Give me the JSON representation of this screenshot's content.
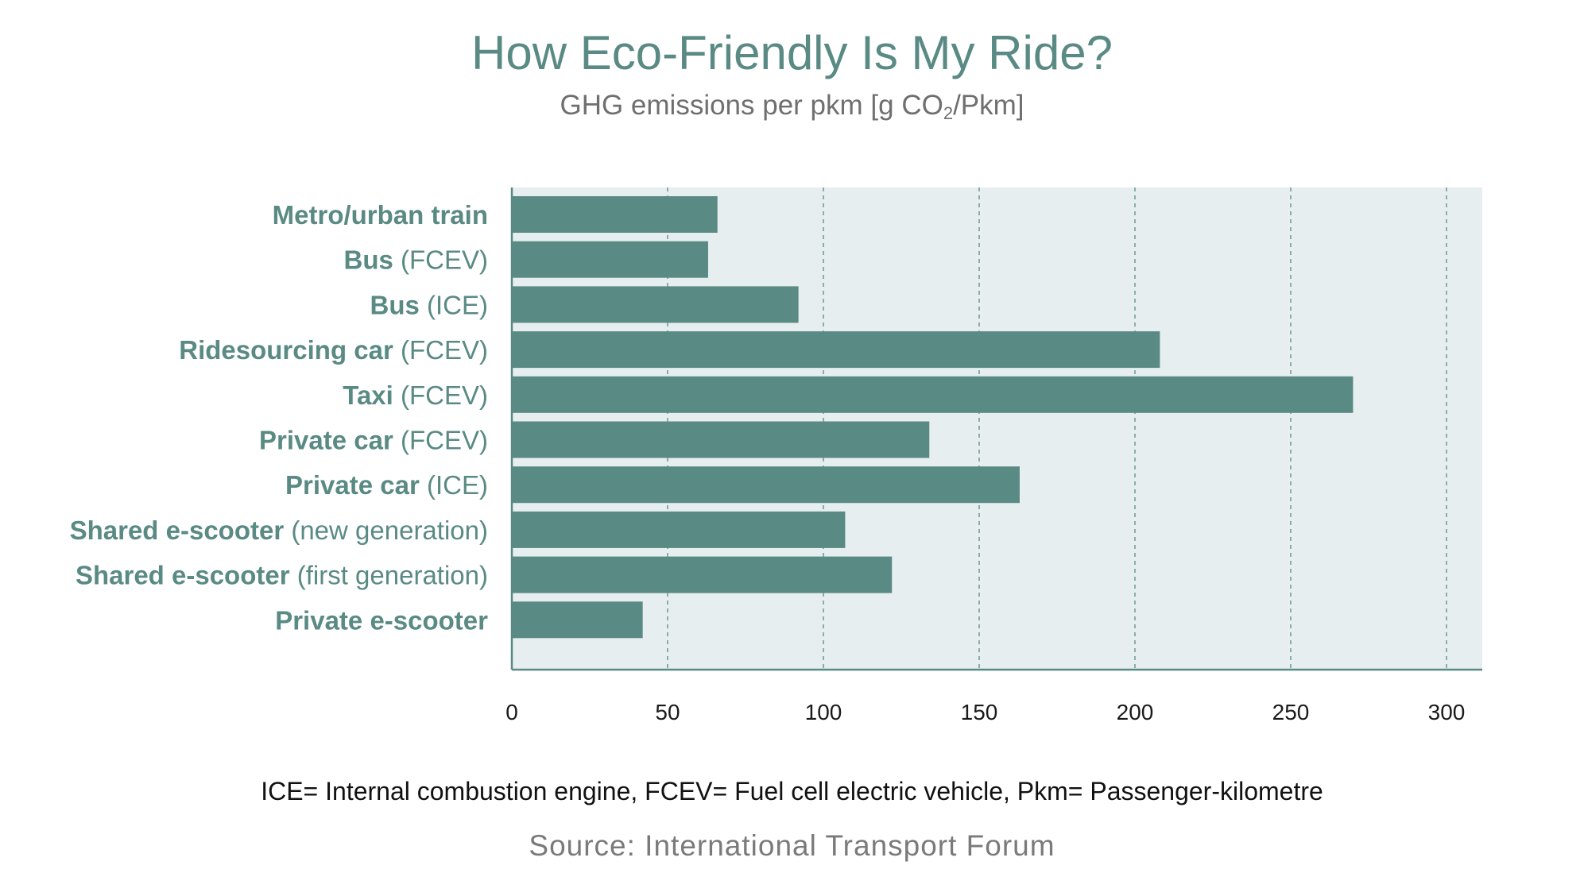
{
  "header": {
    "title": "How Eco-Friendly Is My Ride?",
    "subtitle_main": "GHG emissions per pkm [g CO",
    "subtitle_sub": "2",
    "subtitle_end": "/Pkm]"
  },
  "footer": {
    "footnote": "ICE= Internal combustion engine, FCEV= Fuel cell electric vehicle, Pkm= Passenger-kilometre",
    "source": "Source: International Transport Forum"
  },
  "colors": {
    "bar": "#5a8a84",
    "plot_background": "#e6eef0",
    "grid": "#5a8a84",
    "label": "#5a8a84"
  },
  "chart_data": {
    "type": "bar",
    "orientation": "horizontal",
    "title": "How Eco-Friendly Is My Ride?",
    "subtitle": "GHG emissions per pkm [g CO2/Pkm]",
    "categories": [
      {
        "bold": "Metro/urban train",
        "rest": ""
      },
      {
        "bold": "Bus",
        "rest": " (FCEV)"
      },
      {
        "bold": "Bus",
        "rest": " (ICE)"
      },
      {
        "bold": "Ridesourcing car",
        "rest": " (FCEV)"
      },
      {
        "bold": "Taxi",
        "rest": " (FCEV)"
      },
      {
        "bold": "Private car",
        "rest": " (FCEV)"
      },
      {
        "bold": "Private car",
        "rest": " (ICE)"
      },
      {
        "bold": "Shared e-scooter",
        "rest": " (new generation)"
      },
      {
        "bold": "Shared e-scooter",
        "rest": " (first generation)"
      },
      {
        "bold": "Private e-scooter",
        "rest": ""
      }
    ],
    "values": [
      66,
      63,
      92,
      208,
      270,
      134,
      163,
      107,
      122,
      42
    ],
    "xlim": [
      0,
      310
    ],
    "xticks": [
      0,
      50,
      100,
      150,
      200,
      250,
      300
    ],
    "grid": "vertical dashed",
    "legend": "none"
  }
}
